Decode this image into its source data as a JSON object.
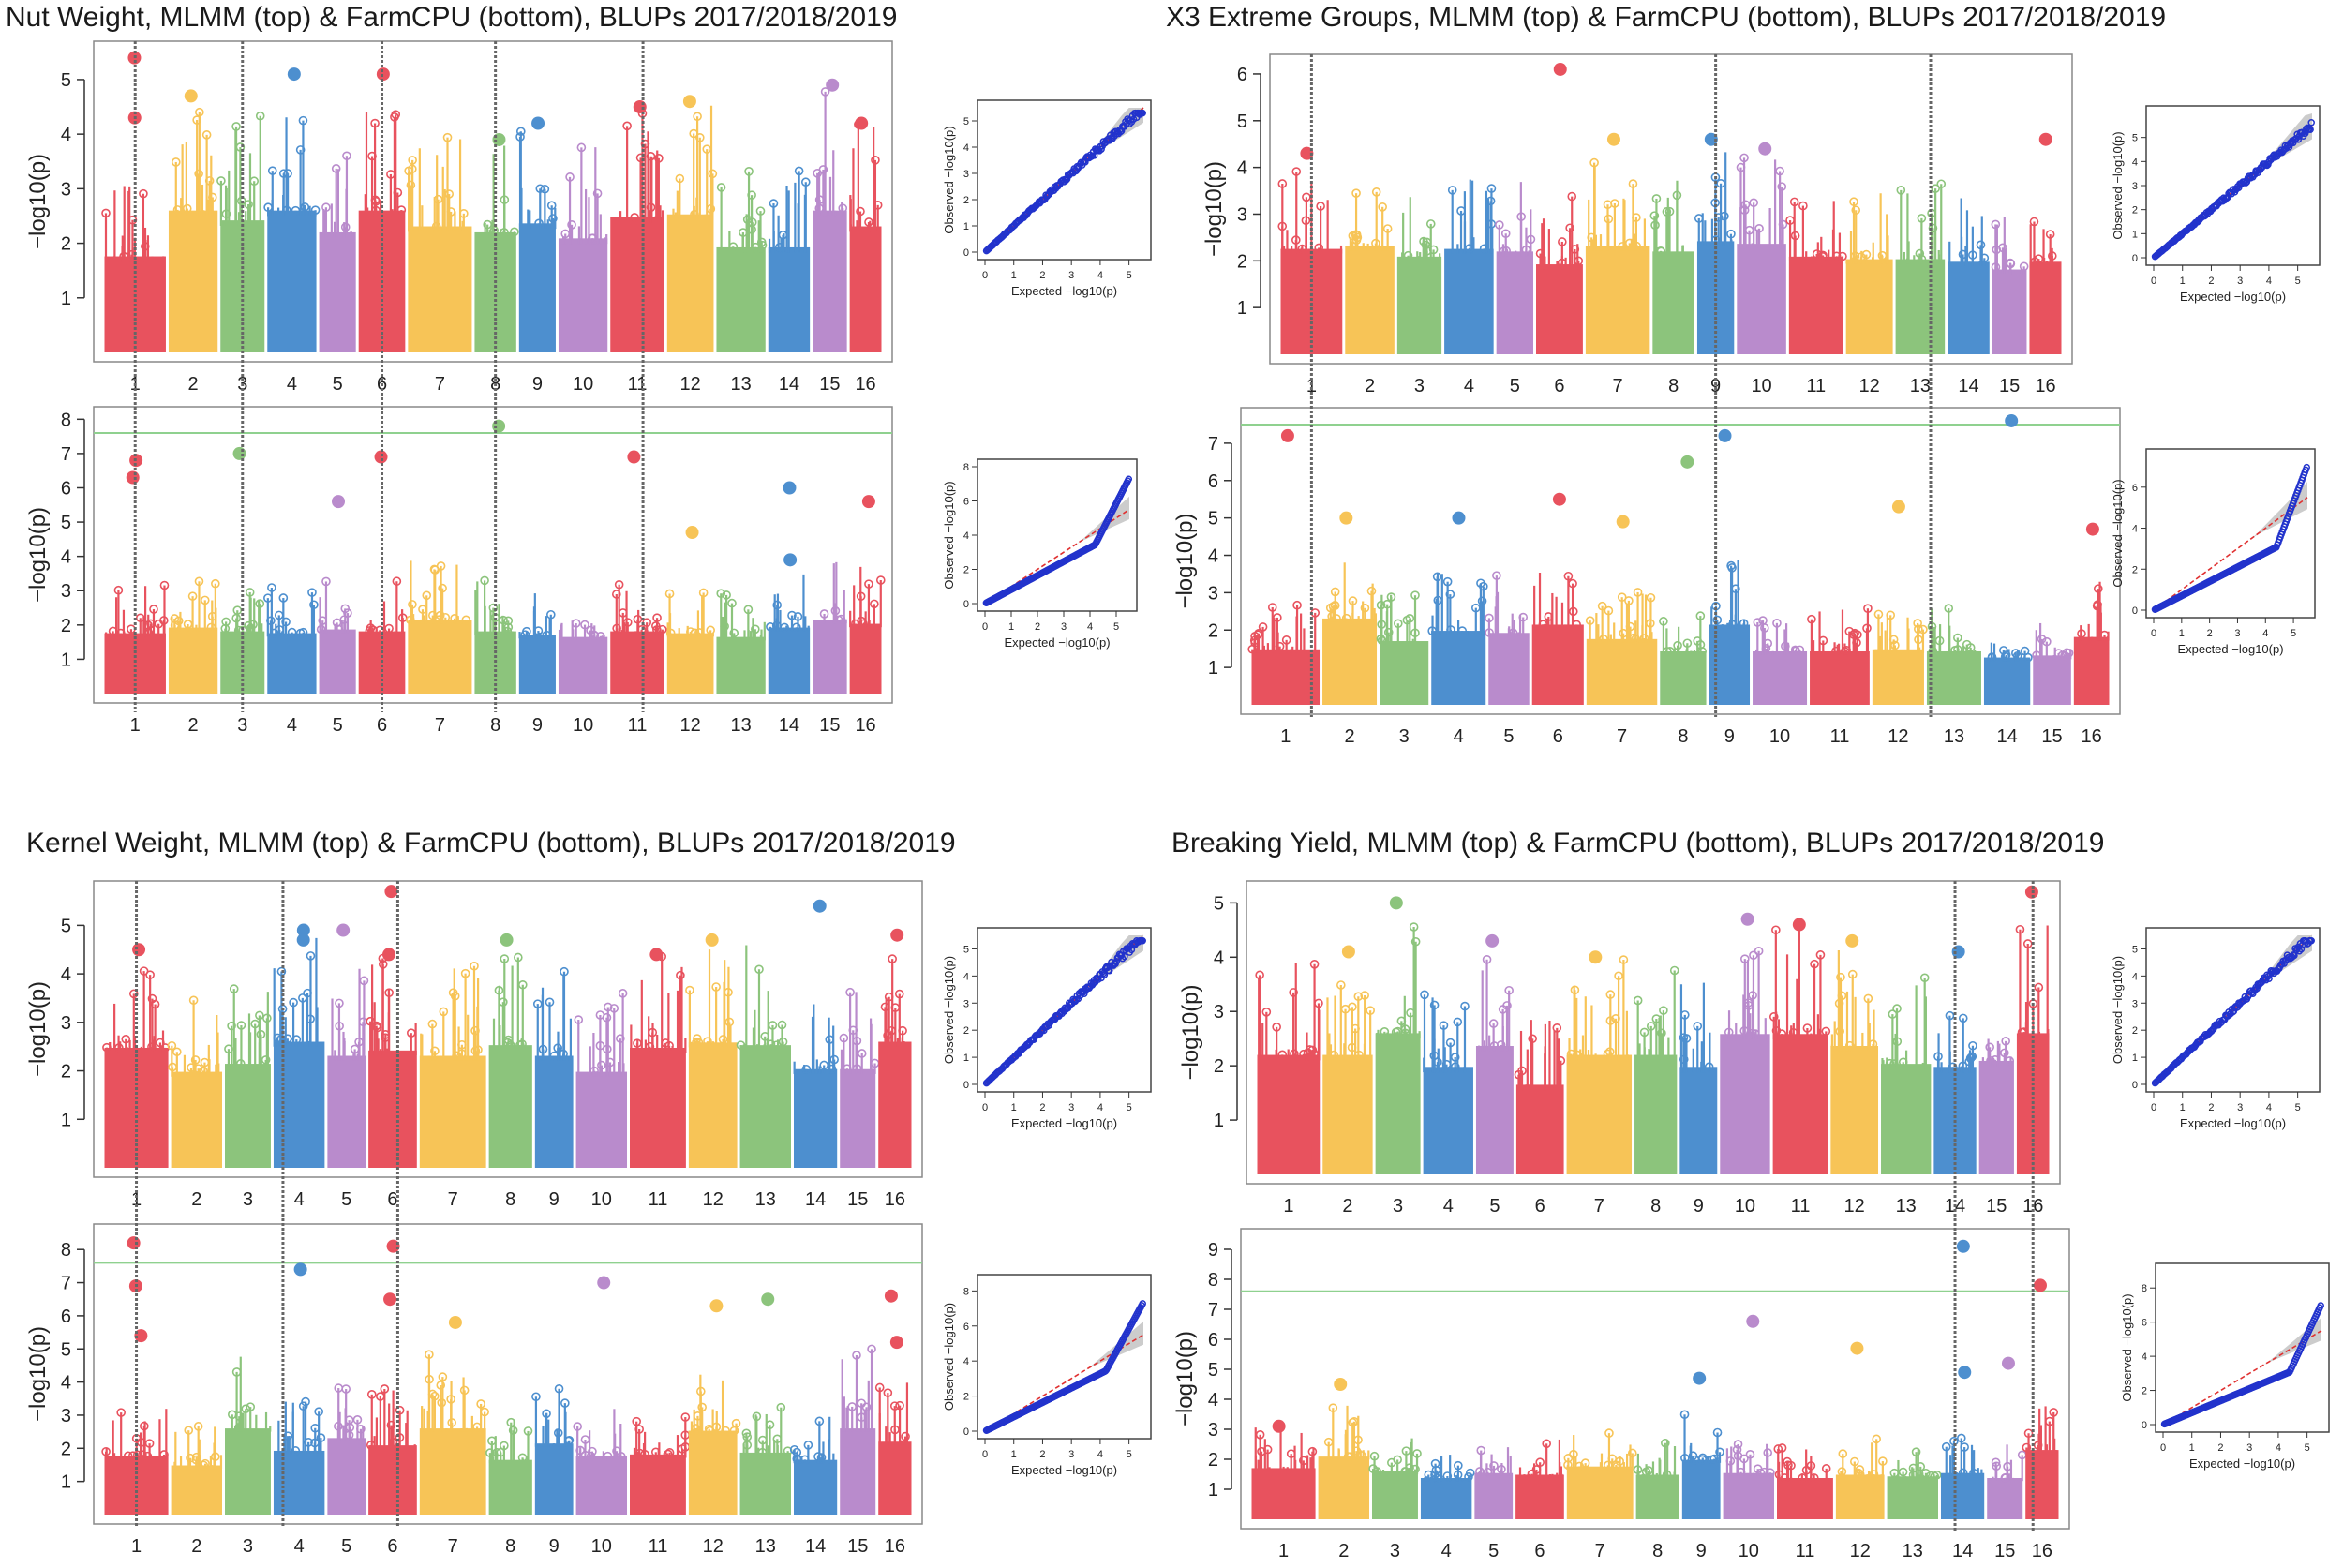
{
  "colors": {
    "red": "#e8525e",
    "yellow": "#f7c457",
    "green": "#8cc47c",
    "blue": "#4d8fcf",
    "purple": "#b98bcc",
    "threshold": "#8fd18f",
    "qq_points": "#2233cc",
    "qq_line": "#e03030",
    "qq_band": "#aaaaaa",
    "marker_line": "#666666"
  },
  "common": {
    "y_axis_label": "−log10(p)",
    "qq_x_label": "Expected −log10(p)",
    "qq_y_label": "Observed −log10(p)",
    "chromosomes": [
      "1",
      "2",
      "3",
      "4",
      "5",
      "6",
      "7",
      "8",
      "9",
      "10",
      "11",
      "12",
      "13",
      "14",
      "15",
      "16"
    ]
  },
  "chart_data": [
    {
      "type": "scatter",
      "subtype": "manhattan",
      "title": "Nut Weight, MLMM (top) & FarmCPU (bottom), BLUPs 2017/2018/2019",
      "marker_chromosomes": [
        1,
        3,
        6,
        8,
        11.6
      ],
      "panels": [
        {
          "method": "MLMM",
          "ylim": [
            0,
            5.6
          ],
          "yticks": [
            1,
            2,
            3,
            4,
            5
          ],
          "threshold": null,
          "base_peaks": [
            3.2,
            4.8,
            4.4,
            5.0,
            4.0,
            5.1,
            4.2,
            4.0,
            4.3,
            3.8,
            4.5,
            4.6,
            3.5,
            3.5,
            4.9,
            4.2
          ],
          "hits": [
            {
              "chr": 1,
              "value": 5.4
            },
            {
              "chr": 1,
              "value": 4.3
            },
            {
              "chr": 2,
              "value": 4.7
            },
            {
              "chr": 4,
              "value": 5.1
            },
            {
              "chr": 6,
              "value": 5.1
            },
            {
              "chr": 8,
              "value": 3.9
            },
            {
              "chr": 9,
              "value": 4.2
            },
            {
              "chr": 11,
              "value": 4.5
            },
            {
              "chr": 12,
              "value": 4.6
            },
            {
              "chr": 15,
              "value": 4.9
            },
            {
              "chr": 16,
              "value": 4.2
            }
          ]
        },
        {
          "method": "FarmCPU",
          "ylim": [
            0,
            8.2
          ],
          "yticks": [
            1,
            2,
            3,
            4,
            5,
            6,
            7,
            8
          ],
          "threshold": 7.6,
          "base_peaks": [
            3.2,
            3.5,
            3.3,
            3.2,
            3.4,
            3.3,
            3.9,
            3.3,
            3.1,
            3.0,
            3.3,
            3.2,
            3.0,
            3.5,
            3.9,
            3.7
          ],
          "hits": [
            {
              "chr": 1,
              "value": 6.8
            },
            {
              "chr": 1,
              "value": 6.3
            },
            {
              "chr": 3,
              "value": 7.0
            },
            {
              "chr": 5,
              "value": 5.6
            },
            {
              "chr": 6,
              "value": 6.9
            },
            {
              "chr": 8,
              "value": 7.8
            },
            {
              "chr": 11,
              "value": 6.9
            },
            {
              "chr": 12,
              "value": 4.7
            },
            {
              "chr": 14,
              "value": 6.0
            },
            {
              "chr": 14,
              "value": 3.9
            },
            {
              "chr": 16,
              "value": 5.6
            }
          ]
        }
      ],
      "qq": [
        {
          "xticks": [
            0,
            1,
            2,
            3,
            4,
            5
          ],
          "yticks": [
            0,
            1,
            2,
            3,
            4,
            5
          ],
          "xmax": 5.5,
          "ymax": 5.5,
          "inflation": "null"
        },
        {
          "xticks": [
            0,
            1,
            2,
            3,
            4,
            5
          ],
          "yticks": [
            0,
            2,
            4,
            6,
            8
          ],
          "xmax": 5.5,
          "ymax": 8,
          "inflation": "tail"
        }
      ]
    },
    {
      "type": "scatter",
      "subtype": "manhattan",
      "title": "X3 Extreme Groups, MLMM (top) & FarmCPU (bottom), BLUPs 2017/2018/2019",
      "marker_chromosomes": [
        1,
        9.5,
        13.7
      ],
      "panels": [
        {
          "method": "MLMM",
          "ylim": [
            0,
            6.3
          ],
          "yticks": [
            1,
            2,
            3,
            4,
            5,
            6
          ],
          "threshold": null,
          "base_peaks": [
            4.1,
            4.2,
            3.8,
            4.1,
            4.0,
            3.5,
            4.2,
            4.0,
            4.4,
            4.3,
            3.8,
            3.7,
            3.7,
            3.6,
            3.3,
            3.6
          ],
          "hits": [
            {
              "chr": 1,
              "value": 4.3
            },
            {
              "chr": 6,
              "value": 6.1
            },
            {
              "chr": 7,
              "value": 4.6
            },
            {
              "chr": 9,
              "value": 4.6
            },
            {
              "chr": 10,
              "value": 4.4
            },
            {
              "chr": 16,
              "value": 4.6
            }
          ]
        },
        {
          "method": "FarmCPU",
          "ylim": [
            0,
            7.8
          ],
          "yticks": [
            1,
            2,
            3,
            4,
            5,
            6,
            7
          ],
          "threshold": 7.5,
          "base_peaks": [
            2.7,
            4.2,
            3.1,
            3.6,
            3.5,
            3.9,
            3.2,
            2.6,
            3.9,
            2.6,
            2.6,
            2.7,
            2.6,
            2.3,
            2.4,
            3.3
          ],
          "hits": [
            {
              "chr": 1,
              "value": 7.2
            },
            {
              "chr": 2,
              "value": 5.0
            },
            {
              "chr": 4,
              "value": 5.0
            },
            {
              "chr": 6,
              "value": 5.5
            },
            {
              "chr": 7,
              "value": 4.9
            },
            {
              "chr": 8,
              "value": 6.5
            },
            {
              "chr": 9,
              "value": 7.2
            },
            {
              "chr": 12,
              "value": 5.3
            },
            {
              "chr": 14,
              "value": 7.6
            },
            {
              "chr": 16,
              "value": 4.7
            }
          ]
        }
      ],
      "qq": [
        {
          "xticks": [
            0,
            1,
            2,
            3,
            4,
            5
          ],
          "yticks": [
            0,
            1,
            2,
            3,
            4,
            5
          ],
          "xmax": 5.5,
          "ymax": 6,
          "inflation": "null"
        },
        {
          "xticks": [
            0,
            1,
            2,
            3,
            4,
            5
          ],
          "yticks": [
            0,
            2,
            4,
            6
          ],
          "xmax": 5.5,
          "ymax": 7.5,
          "inflation": "deflated"
        }
      ]
    },
    {
      "type": "scatter",
      "subtype": "manhattan",
      "title": "Kernel Weight, MLMM (top) & FarmCPU (bottom), BLUPs 2017/2018/2019",
      "marker_chromosomes": [
        1.5,
        4.2,
        6.6
      ],
      "panels": [
        {
          "method": "MLMM",
          "ylim": [
            0,
            5.8
          ],
          "yticks": [
            1,
            2,
            3,
            4,
            5
          ],
          "threshold": null,
          "base_peaks": [
            4.5,
            3.6,
            3.9,
            4.8,
            4.2,
            4.4,
            4.2,
            4.6,
            4.2,
            3.6,
            4.5,
            4.7,
            4.6,
            3.7,
            3.7,
            4.8
          ],
          "hits": [
            {
              "chr": 1,
              "value": 4.5
            },
            {
              "chr": 4,
              "value": 4.9
            },
            {
              "chr": 4,
              "value": 4.7
            },
            {
              "chr": 5,
              "value": 4.9
            },
            {
              "chr": 6,
              "value": 5.7
            },
            {
              "chr": 6,
              "value": 4.4
            },
            {
              "chr": 8,
              "value": 4.7
            },
            {
              "chr": 11,
              "value": 4.4
            },
            {
              "chr": 12,
              "value": 4.7
            },
            {
              "chr": 14,
              "value": 5.4
            },
            {
              "chr": 16,
              "value": 4.8
            }
          ]
        },
        {
          "method": "FarmCPU",
          "ylim": [
            0,
            8.6
          ],
          "yticks": [
            1,
            2,
            3,
            4,
            5,
            6,
            7,
            8
          ],
          "threshold": 7.6,
          "base_peaks": [
            3.2,
            2.7,
            4.8,
            3.5,
            4.2,
            3.8,
            4.9,
            3.0,
            3.9,
            3.2,
            3.3,
            4.6,
            3.4,
            3.0,
            5.1,
            4.0
          ],
          "hits": [
            {
              "chr": 1,
              "value": 6.9
            },
            {
              "chr": 1,
              "value": 5.4
            },
            {
              "chr": 1,
              "value": 8.2
            },
            {
              "chr": 4,
              "value": 7.4
            },
            {
              "chr": 6,
              "value": 6.5
            },
            {
              "chr": 6,
              "value": 8.1
            },
            {
              "chr": 7,
              "value": 5.8
            },
            {
              "chr": 10,
              "value": 7.0
            },
            {
              "chr": 12,
              "value": 6.3
            },
            {
              "chr": 13,
              "value": 6.5
            },
            {
              "chr": 16,
              "value": 6.6
            },
            {
              "chr": 16,
              "value": 5.2
            }
          ]
        }
      ],
      "qq": [
        {
          "xticks": [
            0,
            1,
            2,
            3,
            4,
            5
          ],
          "yticks": [
            0,
            1,
            2,
            3,
            4,
            5
          ],
          "xmax": 5.5,
          "ymax": 5.5,
          "inflation": "null"
        },
        {
          "xticks": [
            0,
            1,
            2,
            3,
            4,
            5
          ],
          "yticks": [
            0,
            2,
            4,
            6,
            8
          ],
          "xmax": 5.5,
          "ymax": 8.5,
          "inflation": "tail"
        }
      ]
    },
    {
      "type": "scatter",
      "subtype": "manhattan",
      "title": "Breaking Yield, MLMM (top) & FarmCPU (bottom), BLUPs 2017/2018/2019",
      "marker_chromosomes": [
        14,
        16
      ],
      "panels": [
        {
          "method": "MLMM",
          "ylim": [
            0,
            5.3
          ],
          "yticks": [
            1,
            2,
            3,
            4,
            5
          ],
          "threshold": null,
          "base_peaks": [
            4.0,
            4.0,
            5.0,
            3.6,
            4.3,
            3.0,
            4.0,
            4.0,
            3.6,
            4.7,
            4.7,
            4.3,
            3.7,
            3.6,
            3.8,
            5.1
          ],
          "hits": [
            {
              "chr": 2,
              "value": 4.1
            },
            {
              "chr": 3,
              "value": 5.0
            },
            {
              "chr": 5,
              "value": 4.3
            },
            {
              "chr": 7,
              "value": 4.0
            },
            {
              "chr": 10,
              "value": 4.7
            },
            {
              "chr": 11,
              "value": 4.6
            },
            {
              "chr": 12,
              "value": 4.3
            },
            {
              "chr": 14,
              "value": 4.1
            },
            {
              "chr": 16,
              "value": 5.2
            }
          ]
        },
        {
          "method": "FarmCPU",
          "ylim": [
            0,
            9.5
          ],
          "yticks": [
            1,
            2,
            3,
            4,
            5,
            6,
            7,
            8,
            9
          ],
          "threshold": 7.6,
          "base_peaks": [
            3.1,
            3.8,
            2.9,
            2.5,
            2.8,
            2.7,
            3.2,
            2.7,
            3.6,
            2.8,
            2.5,
            2.7,
            2.6,
            2.8,
            2.5,
            4.2
          ],
          "hits": [
            {
              "chr": 1,
              "value": 3.1
            },
            {
              "chr": 2,
              "value": 4.5
            },
            {
              "chr": 9,
              "value": 4.7
            },
            {
              "chr": 10,
              "value": 6.6
            },
            {
              "chr": 12,
              "value": 5.7
            },
            {
              "chr": 14,
              "value": 4.9
            },
            {
              "chr": 14,
              "value": 9.1
            },
            {
              "chr": 15,
              "value": 5.2
            },
            {
              "chr": 16,
              "value": 7.8
            }
          ]
        }
      ],
      "qq": [
        {
          "xticks": [
            0,
            1,
            2,
            3,
            4,
            5
          ],
          "yticks": [
            0,
            1,
            2,
            3,
            4,
            5
          ],
          "xmax": 5.5,
          "ymax": 5.5,
          "inflation": "null"
        },
        {
          "xticks": [
            0,
            1,
            2,
            3,
            4,
            5
          ],
          "yticks": [
            0,
            2,
            4,
            6,
            8
          ],
          "xmax": 5.5,
          "ymax": 9,
          "inflation": "deflated"
        }
      ]
    }
  ]
}
